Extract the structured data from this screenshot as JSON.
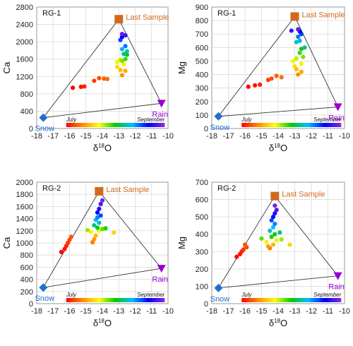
{
  "colors": {
    "last_sample": "#d2691e",
    "rain": "#9400d3",
    "snow": "#1f6fd1",
    "triangle": "#333333",
    "grid": "#d9d9d9"
  },
  "colorbar": {
    "start_label": "July",
    "end_label": "September",
    "stops": [
      "#ff0000",
      "#ff8c00",
      "#ffff00",
      "#00cc00",
      "#00bfff",
      "#0000ff",
      "#8a2be2"
    ]
  },
  "chart_data": [
    {
      "type": "scatter",
      "title": "RG-1",
      "ylabel": "Ca",
      "xlabel_pre": "δ",
      "xlabel_sup": "18",
      "xlabel_post": "O",
      "xlim": [
        -18,
        -10
      ],
      "ylim": [
        0,
        2800
      ],
      "xticks": [
        -18,
        -17,
        -16,
        -15,
        -14,
        -13,
        -12,
        -11,
        -10
      ],
      "yticks": [
        0,
        400,
        800,
        1200,
        1600,
        2000,
        2400,
        2800
      ],
      "end_members": {
        "snow": {
          "label": "Snow",
          "x": -17.6,
          "y": 250
        },
        "rain": {
          "label": "Rain",
          "x": -10.4,
          "y": 580
        },
        "last_sample": {
          "label": "Last Sample",
          "x": -13.0,
          "y": 2520
        }
      },
      "points": [
        {
          "x": -15.8,
          "y": 940,
          "t": 0.0
        },
        {
          "x": -15.3,
          "y": 960,
          "t": 0.02
        },
        {
          "x": -15.1,
          "y": 970,
          "t": 0.04
        },
        {
          "x": -14.5,
          "y": 1100,
          "t": 0.07
        },
        {
          "x": -14.2,
          "y": 1160,
          "t": 0.09
        },
        {
          "x": -13.9,
          "y": 1150,
          "t": 0.11
        },
        {
          "x": -13.7,
          "y": 1140,
          "t": 0.13
        },
        {
          "x": -12.8,
          "y": 1230,
          "t": 0.17
        },
        {
          "x": -12.6,
          "y": 1330,
          "t": 0.21
        },
        {
          "x": -12.9,
          "y": 1350,
          "t": 0.24
        },
        {
          "x": -13.1,
          "y": 1420,
          "t": 0.28
        },
        {
          "x": -12.7,
          "y": 1480,
          "t": 0.31
        },
        {
          "x": -13.1,
          "y": 1530,
          "t": 0.35
        },
        {
          "x": -12.9,
          "y": 1580,
          "t": 0.38
        },
        {
          "x": -12.8,
          "y": 1560,
          "t": 0.42
        },
        {
          "x": -12.6,
          "y": 1600,
          "t": 0.46
        },
        {
          "x": -12.5,
          "y": 1700,
          "t": 0.52
        },
        {
          "x": -12.7,
          "y": 1720,
          "t": 0.57
        },
        {
          "x": -12.5,
          "y": 1780,
          "t": 0.62
        },
        {
          "x": -12.8,
          "y": 1830,
          "t": 0.68
        },
        {
          "x": -12.6,
          "y": 1900,
          "t": 0.73
        },
        {
          "x": -12.9,
          "y": 2040,
          "t": 0.78
        },
        {
          "x": -12.8,
          "y": 2110,
          "t": 0.84
        },
        {
          "x": -12.6,
          "y": 2150,
          "t": 0.9
        },
        {
          "x": -12.8,
          "y": 2180,
          "t": 0.95
        }
      ]
    },
    {
      "type": "scatter",
      "title": "RG-1",
      "ylabel": "Mg",
      "xlabel_pre": "δ",
      "xlabel_sup": "18",
      "xlabel_post": "O",
      "xlim": [
        -18,
        -10
      ],
      "ylim": [
        0,
        900
      ],
      "xticks": [
        -18,
        -17,
        -16,
        -15,
        -14,
        -13,
        -12,
        -11,
        -10
      ],
      "yticks": [
        0,
        100,
        200,
        300,
        400,
        500,
        600,
        700,
        800,
        900
      ],
      "end_members": {
        "snow": {
          "label": "Snow",
          "x": -17.6,
          "y": 90
        },
        "rain": {
          "label": "Rain",
          "x": -10.4,
          "y": 160
        },
        "last_sample": {
          "label": "Last Sample",
          "x": -13.0,
          "y": 830
        }
      },
      "points": [
        {
          "x": -15.8,
          "y": 310,
          "t": 0.0
        },
        {
          "x": -15.4,
          "y": 320,
          "t": 0.02
        },
        {
          "x": -15.1,
          "y": 325,
          "t": 0.04
        },
        {
          "x": -14.6,
          "y": 360,
          "t": 0.07
        },
        {
          "x": -14.4,
          "y": 370,
          "t": 0.09
        },
        {
          "x": -14.1,
          "y": 390,
          "t": 0.11
        },
        {
          "x": -13.8,
          "y": 380,
          "t": 0.13
        },
        {
          "x": -12.8,
          "y": 400,
          "t": 0.17
        },
        {
          "x": -12.6,
          "y": 420,
          "t": 0.21
        },
        {
          "x": -12.9,
          "y": 440,
          "t": 0.24
        },
        {
          "x": -13.0,
          "y": 460,
          "t": 0.28
        },
        {
          "x": -12.6,
          "y": 480,
          "t": 0.31
        },
        {
          "x": -13.1,
          "y": 500,
          "t": 0.35
        },
        {
          "x": -12.9,
          "y": 520,
          "t": 0.38
        },
        {
          "x": -12.5,
          "y": 530,
          "t": 0.42
        },
        {
          "x": -12.7,
          "y": 560,
          "t": 0.46
        },
        {
          "x": -12.6,
          "y": 590,
          "t": 0.52
        },
        {
          "x": -12.4,
          "y": 600,
          "t": 0.57
        },
        {
          "x": -12.9,
          "y": 640,
          "t": 0.62
        },
        {
          "x": -12.7,
          "y": 650,
          "t": 0.68
        },
        {
          "x": -12.8,
          "y": 680,
          "t": 0.73
        },
        {
          "x": -12.6,
          "y": 700,
          "t": 0.78
        },
        {
          "x": -12.7,
          "y": 720,
          "t": 0.84
        },
        {
          "x": -13.2,
          "y": 725,
          "t": 0.9
        },
        {
          "x": -12.8,
          "y": 735,
          "t": 0.95
        }
      ]
    },
    {
      "type": "scatter",
      "title": "RG-2",
      "ylabel": "Ca",
      "xlabel_pre": "δ",
      "xlabel_sup": "18",
      "xlabel_post": "O",
      "xlim": [
        -18,
        -10
      ],
      "ylim": [
        0,
        2000
      ],
      "xticks": [
        -18,
        -17,
        -16,
        -15,
        -14,
        -13,
        -12,
        -11,
        -10
      ],
      "yticks": [
        0,
        200,
        400,
        600,
        800,
        1000,
        1200,
        1400,
        1600,
        1800,
        2000
      ],
      "end_members": {
        "snow": {
          "label": "Snow",
          "x": -17.6,
          "y": 265
        },
        "rain": {
          "label": "Rain",
          "x": -10.4,
          "y": 580
        },
        "last_sample": {
          "label": "Last Sample",
          "x": -14.2,
          "y": 1850
        }
      },
      "points": [
        {
          "x": -16.5,
          "y": 850,
          "t": 0.0
        },
        {
          "x": -16.3,
          "y": 900,
          "t": 0.02
        },
        {
          "x": -16.2,
          "y": 950,
          "t": 0.04
        },
        {
          "x": -16.1,
          "y": 1000,
          "t": 0.06
        },
        {
          "x": -16.0,
          "y": 1050,
          "t": 0.08
        },
        {
          "x": -15.9,
          "y": 1100,
          "t": 0.1
        },
        {
          "x": -14.6,
          "y": 1010,
          "t": 0.15
        },
        {
          "x": -14.5,
          "y": 1060,
          "t": 0.19
        },
        {
          "x": -14.4,
          "y": 1120,
          "t": 0.23
        },
        {
          "x": -13.3,
          "y": 1170,
          "t": 0.27
        },
        {
          "x": -14.7,
          "y": 1180,
          "t": 0.31
        },
        {
          "x": -14.2,
          "y": 1200,
          "t": 0.35
        },
        {
          "x": -14.9,
          "y": 1210,
          "t": 0.4
        },
        {
          "x": -14.0,
          "y": 1230,
          "t": 0.44
        },
        {
          "x": -13.8,
          "y": 1240,
          "t": 0.48
        },
        {
          "x": -14.3,
          "y": 1250,
          "t": 0.52
        },
        {
          "x": -14.5,
          "y": 1290,
          "t": 0.57
        },
        {
          "x": -14.2,
          "y": 1330,
          "t": 0.62
        },
        {
          "x": -14.4,
          "y": 1380,
          "t": 0.67
        },
        {
          "x": -14.3,
          "y": 1420,
          "t": 0.72
        },
        {
          "x": -14.1,
          "y": 1450,
          "t": 0.77
        },
        {
          "x": -14.3,
          "y": 1500,
          "t": 0.82
        },
        {
          "x": -14.2,
          "y": 1560,
          "t": 0.87
        },
        {
          "x": -14.1,
          "y": 1640,
          "t": 0.92
        },
        {
          "x": -14.0,
          "y": 1700,
          "t": 0.97
        }
      ]
    },
    {
      "type": "scatter",
      "title": "RG-2",
      "ylabel": "Mg",
      "xlabel_pre": "δ",
      "xlabel_sup": "18",
      "xlabel_post": "O",
      "xlim": [
        -18,
        -10
      ],
      "ylim": [
        0,
        700
      ],
      "xticks": [
        -18,
        -17,
        -16,
        -15,
        -14,
        -13,
        -12,
        -11,
        -10
      ],
      "yticks": [
        0,
        100,
        200,
        300,
        400,
        500,
        600,
        700
      ],
      "end_members": {
        "snow": {
          "label": "Snow",
          "x": -17.6,
          "y": 90
        },
        "rain": {
          "label": "Rain",
          "x": -10.4,
          "y": 160
        },
        "last_sample": {
          "label": "Last Sample",
          "x": -14.2,
          "y": 620
        }
      },
      "points": [
        {
          "x": -16.5,
          "y": 270,
          "t": 0.0
        },
        {
          "x": -16.3,
          "y": 285,
          "t": 0.02
        },
        {
          "x": -16.2,
          "y": 300,
          "t": 0.04
        },
        {
          "x": -16.1,
          "y": 310,
          "t": 0.06
        },
        {
          "x": -15.9,
          "y": 325,
          "t": 0.08
        },
        {
          "x": -16.0,
          "y": 340,
          "t": 0.1
        },
        {
          "x": -14.5,
          "y": 320,
          "t": 0.15
        },
        {
          "x": -14.6,
          "y": 330,
          "t": 0.19
        },
        {
          "x": -14.3,
          "y": 340,
          "t": 0.23
        },
        {
          "x": -13.3,
          "y": 340,
          "t": 0.27
        },
        {
          "x": -14.7,
          "y": 355,
          "t": 0.31
        },
        {
          "x": -14.1,
          "y": 365,
          "t": 0.35
        },
        {
          "x": -13.8,
          "y": 370,
          "t": 0.4
        },
        {
          "x": -15.0,
          "y": 375,
          "t": 0.44
        },
        {
          "x": -14.4,
          "y": 385,
          "t": 0.48
        },
        {
          "x": -14.2,
          "y": 400,
          "t": 0.52
        },
        {
          "x": -13.9,
          "y": 410,
          "t": 0.57
        },
        {
          "x": -14.5,
          "y": 420,
          "t": 0.62
        },
        {
          "x": -14.3,
          "y": 440,
          "t": 0.67
        },
        {
          "x": -14.2,
          "y": 460,
          "t": 0.72
        },
        {
          "x": -14.4,
          "y": 480,
          "t": 0.77
        },
        {
          "x": -14.3,
          "y": 500,
          "t": 0.82
        },
        {
          "x": -14.2,
          "y": 520,
          "t": 0.87
        },
        {
          "x": -14.1,
          "y": 540,
          "t": 0.92
        },
        {
          "x": -14.2,
          "y": 565,
          "t": 0.97
        }
      ]
    }
  ]
}
